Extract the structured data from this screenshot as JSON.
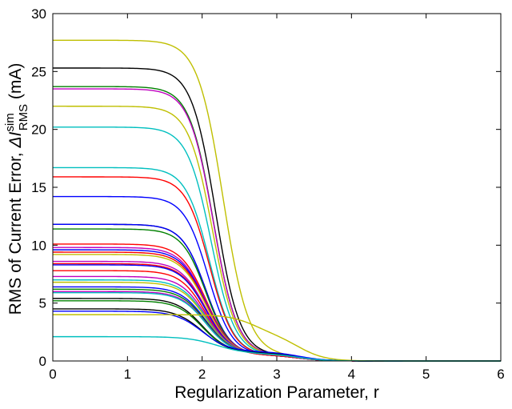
{
  "chart_data": {
    "type": "line",
    "xlabel": "Regularization Parameter, r",
    "ylabel": {
      "prefix": "RMS of Current Error, ",
      "symbol": "ΔI",
      "superscript": "sim",
      "subscript": "RMS",
      "suffix": " (mA)"
    },
    "xlim": [
      0,
      6
    ],
    "ylim": [
      0,
      30
    ],
    "xticks": [
      "0",
      "1",
      "2",
      "3",
      "4",
      "5",
      "6"
    ],
    "yticks": [
      "0",
      "5",
      "10",
      "15",
      "20",
      "25",
      "30"
    ],
    "grid": false,
    "legend": "none",
    "series": [
      {
        "color": "#bfbf00",
        "plateau": 27.7,
        "midpoint": 2.28,
        "width": 0.17,
        "bump": 0.5
      },
      {
        "color": "#000000",
        "plateau": 25.3,
        "midpoint": 2.18,
        "width": 0.16,
        "bump": 0.5
      },
      {
        "color": "#008000",
        "plateau": 23.7,
        "midpoint": 2.15,
        "width": 0.16,
        "bump": 0.5
      },
      {
        "color": "#bf00bf",
        "plateau": 23.5,
        "midpoint": 2.15,
        "width": 0.16,
        "bump": 0.5
      },
      {
        "color": "#bfbf00",
        "plateau": 22.0,
        "midpoint": 2.14,
        "width": 0.16,
        "bump": 0.5
      },
      {
        "color": "#00bfbf",
        "plateau": 20.2,
        "midpoint": 2.12,
        "width": 0.16,
        "bump": 0.5
      },
      {
        "color": "#00bfbf",
        "plateau": 16.7,
        "midpoint": 2.1,
        "width": 0.16,
        "bump": 0.5
      },
      {
        "color": "#ff0000",
        "plateau": 15.9,
        "midpoint": 2.1,
        "width": 0.16,
        "bump": 0.5
      },
      {
        "color": "#0000ff",
        "plateau": 14.2,
        "midpoint": 2.08,
        "width": 0.16,
        "bump": 0.5
      },
      {
        "color": "#000000",
        "plateau": 11.8,
        "midpoint": 2.05,
        "width": 0.16,
        "bump": 0.5
      },
      {
        "color": "#0000ff",
        "plateau": 11.8,
        "midpoint": 2.05,
        "width": 0.16,
        "bump": 0.5
      },
      {
        "color": "#008000",
        "plateau": 11.4,
        "midpoint": 2.05,
        "width": 0.16,
        "bump": 0.5
      },
      {
        "color": "#ff0000",
        "plateau": 10.1,
        "midpoint": 2.05,
        "width": 0.17,
        "bump": 0.5
      },
      {
        "color": "#bf00bf",
        "plateau": 9.8,
        "midpoint": 2.05,
        "width": 0.17,
        "bump": 0.5
      },
      {
        "color": "#0000ff",
        "plateau": 9.6,
        "midpoint": 2.05,
        "width": 0.17,
        "bump": 0.5
      },
      {
        "color": "#ff0000",
        "plateau": 9.4,
        "midpoint": 2.05,
        "width": 0.17,
        "bump": 0.5
      },
      {
        "color": "#bfbf00",
        "plateau": 9.2,
        "midpoint": 2.05,
        "width": 0.17,
        "bump": 0.5
      },
      {
        "color": "#bf00bf",
        "plateau": 8.6,
        "midpoint": 2.05,
        "width": 0.17,
        "bump": 0.5
      },
      {
        "color": "#ff0000",
        "plateau": 8.4,
        "midpoint": 2.05,
        "width": 0.17,
        "bump": 0.5
      },
      {
        "color": "#0000ff",
        "plateau": 8.3,
        "midpoint": 2.05,
        "width": 0.17,
        "bump": 0.5
      },
      {
        "color": "#ff0000",
        "plateau": 7.8,
        "midpoint": 2.05,
        "width": 0.17,
        "bump": 0.5
      },
      {
        "color": "#bf00bf",
        "plateau": 7.3,
        "midpoint": 2.05,
        "width": 0.17,
        "bump": 0.6
      },
      {
        "color": "#00bfbf",
        "plateau": 7.0,
        "midpoint": 2.05,
        "width": 0.17,
        "bump": 0.6
      },
      {
        "color": "#bfbf00",
        "plateau": 6.8,
        "midpoint": 2.05,
        "width": 0.17,
        "bump": 0.6
      },
      {
        "color": "#0000ff",
        "plateau": 6.4,
        "midpoint": 2.05,
        "width": 0.17,
        "bump": 0.6
      },
      {
        "color": "#008000",
        "plateau": 6.2,
        "midpoint": 2.05,
        "width": 0.17,
        "bump": 0.6
      },
      {
        "color": "#bf00bf",
        "plateau": 6.0,
        "midpoint": 2.05,
        "width": 0.17,
        "bump": 0.6
      },
      {
        "color": "#00bfbf",
        "plateau": 5.9,
        "midpoint": 2.05,
        "width": 0.17,
        "bump": 0.6
      },
      {
        "color": "#000000",
        "plateau": 5.4,
        "midpoint": 2.0,
        "width": 0.17,
        "bump": 0.7
      },
      {
        "color": "#008000",
        "plateau": 5.2,
        "midpoint": 2.0,
        "width": 0.17,
        "bump": 0.7
      },
      {
        "color": "#000000",
        "plateau": 4.5,
        "midpoint": 2.0,
        "width": 0.18,
        "bump": 0.7
      },
      {
        "color": "#0000ff",
        "plateau": 4.3,
        "midpoint": 2.0,
        "width": 0.18,
        "bump": 0.8
      },
      {
        "color": "#bfbf00",
        "plateau": 4.0,
        "midpoint": 2.7,
        "width": 0.18,
        "bump": 2.2
      },
      {
        "color": "#00bfbf",
        "plateau": 2.1,
        "midpoint": 2.2,
        "width": 0.2,
        "bump": 0.6
      }
    ]
  }
}
